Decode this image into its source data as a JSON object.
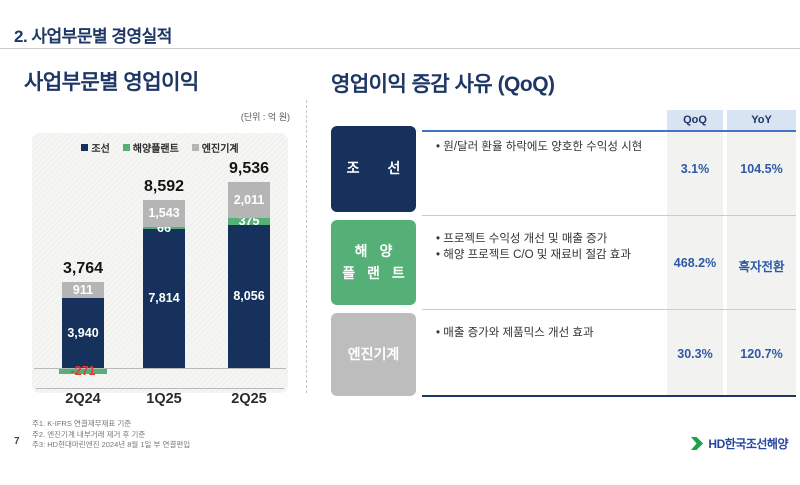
{
  "page": {
    "title": "2. 사업부문별 경영실적",
    "page_number": "7",
    "footnotes": [
      "주1. K-IFRS 연결재무제표 기준",
      "주2. 엔진기계 내부거래 제거 후 기준",
      "주3: HD현대마린엔진 2024년 8월 1일 부 연결편입"
    ],
    "logo_text": "HD한국조선해양"
  },
  "left": {
    "section_title": "사업부문별 영업이익",
    "unit_label": "(단위 : 억 원)"
  },
  "right": {
    "section_title": "영업이익 증감 사유 (QoQ)",
    "columns": [
      "QoQ",
      "YoY"
    ],
    "rows": [
      {
        "label": "조 선",
        "bullets": [
          "원/달러 환율 하락에도 양호한 수익성 시현"
        ],
        "qoq": "3.1%",
        "yoy": "104.5%"
      },
      {
        "label_lines": [
          "해 양",
          "플 랜 트"
        ],
        "bullets": [
          "프로젝트 수익성 개선 및 매출 증가",
          "해양 프로젝트 C/O 및 재료비 절감 효과"
        ],
        "qoq": "468.2%",
        "yoy": "흑자전환"
      },
      {
        "label": "엔진기계",
        "bullets": [
          "매출 증가와 제품믹스 개선 효과"
        ],
        "qoq": "30.3%",
        "yoy": "120.7%"
      }
    ]
  },
  "colors": {
    "navy": "#16325c",
    "green": "#54b076",
    "gray": "#b5b5b5",
    "value_blue": "#2e59a7",
    "negative_label": "#e8392f",
    "header_bg": "#d9e4f3",
    "logo_green": "#22a04b"
  },
  "chart_data": {
    "type": "bar",
    "stacked": true,
    "title": "사업부문별 영업이익",
    "unit": "(단위 : 억 원)",
    "legend_position": "top",
    "categories": [
      "2Q24",
      "1Q25",
      "2Q25"
    ],
    "series": [
      {
        "name": "조선",
        "color": "#16325c",
        "values": [
          3940,
          7814,
          8056
        ],
        "labels": [
          "3,940",
          "7,814",
          "8,056"
        ]
      },
      {
        "name": "해양플랜트",
        "color": "#54b076",
        "values": [
          -271,
          66,
          375
        ],
        "labels": [
          "-271",
          "66",
          "375"
        ]
      },
      {
        "name": "엔진기계",
        "color": "#b5b5b5",
        "values": [
          911,
          1543,
          2011
        ],
        "labels": [
          "911",
          "1,543",
          "2,011"
        ]
      }
    ],
    "totals": {
      "values": [
        3764,
        8592,
        9536
      ],
      "labels": [
        "3,764",
        "8,592",
        "9,536"
      ]
    }
  }
}
